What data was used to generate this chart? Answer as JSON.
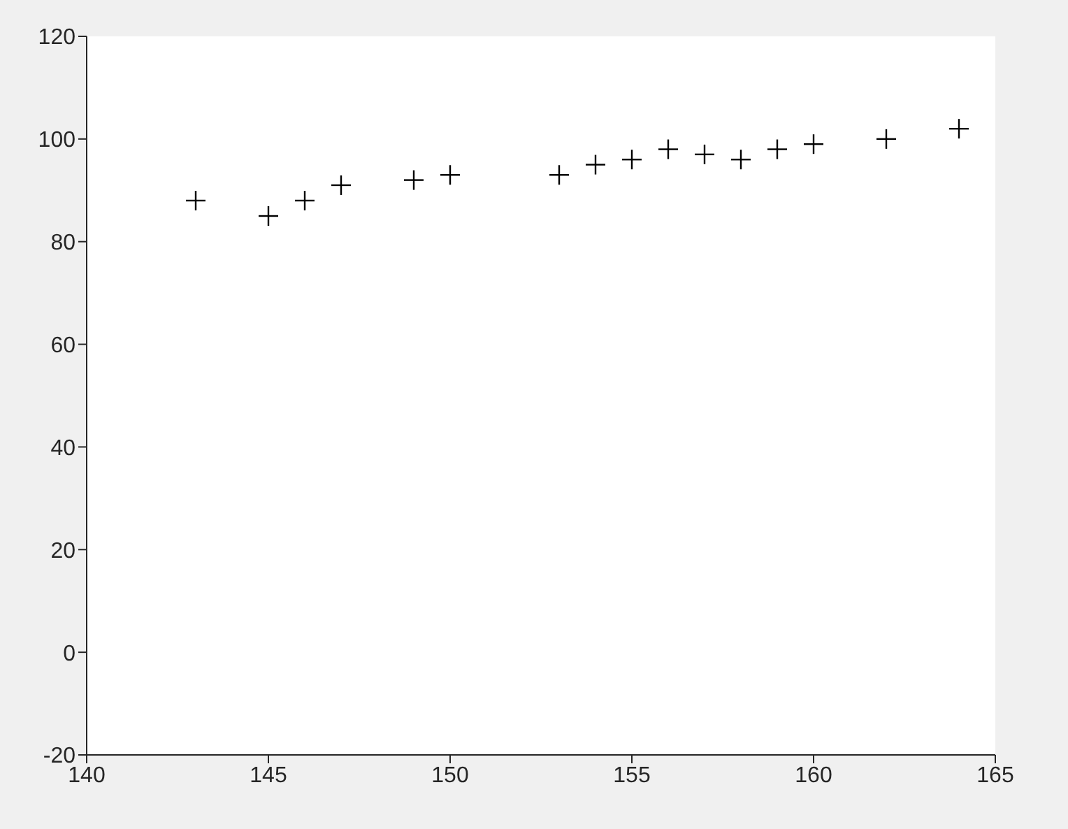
{
  "chart_data": {
    "type": "scatter",
    "x": [
      143,
      145,
      146,
      147,
      149,
      150,
      153,
      154,
      155,
      156,
      157,
      158,
      159,
      160,
      162,
      164
    ],
    "values": [
      88,
      85,
      88,
      91,
      92,
      93,
      93,
      95,
      96,
      98,
      97,
      96,
      98,
      99,
      100,
      102
    ],
    "color": "#000000",
    "marker": "cross",
    "xlim": [
      140,
      165
    ],
    "xticks": [
      140,
      145,
      150,
      155,
      160,
      165
    ],
    "ylim": [
      -20,
      120
    ],
    "yticks": [
      -20,
      0,
      20,
      40,
      60,
      80,
      100,
      120
    ],
    "grid": false,
    "legend": false
  }
}
